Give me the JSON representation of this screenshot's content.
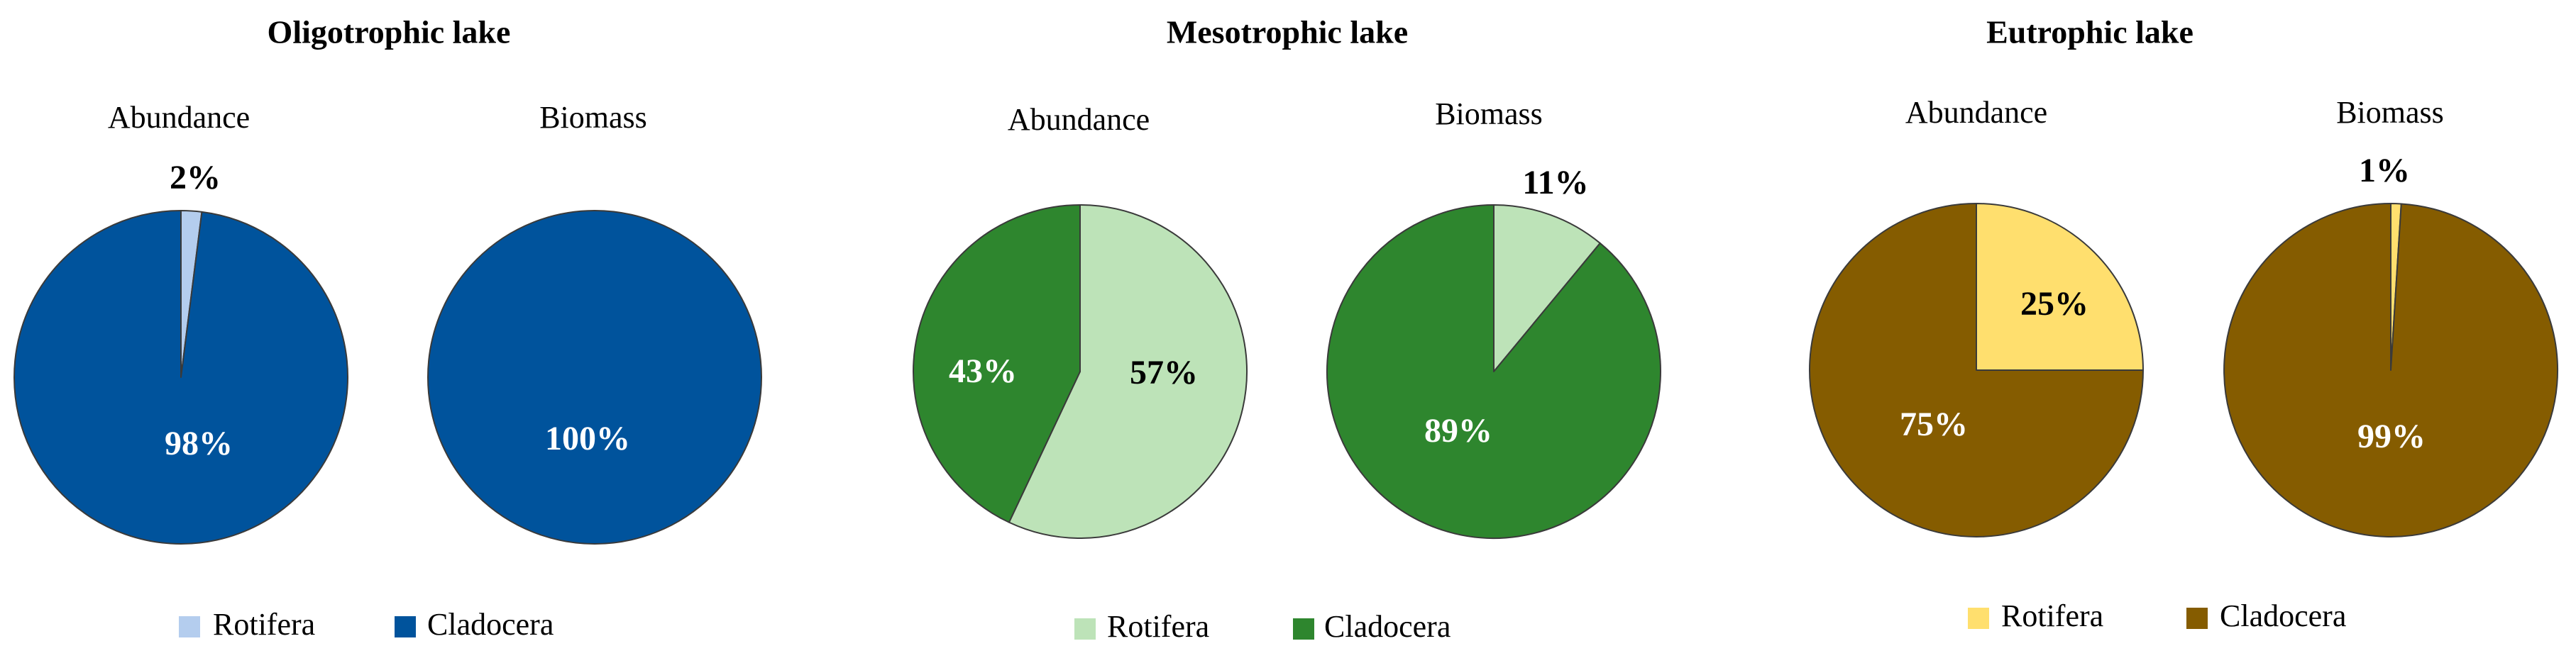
{
  "chart_data": [
    {
      "type": "pie",
      "title": "Oligotrophic lake",
      "categories": [
        "Rotifera",
        "Cladocera"
      ],
      "colors": [
        "#b4cdee",
        "#00539c"
      ],
      "legend_position": "bottom",
      "pies": [
        {
          "label": "Abundance",
          "values": [
            2,
            98
          ],
          "data_labels": [
            "2%",
            "98%"
          ]
        },
        {
          "label": "Biomass",
          "values": [
            0,
            100
          ],
          "data_labels": [
            "",
            "100%"
          ]
        }
      ]
    },
    {
      "type": "pie",
      "title": "Mesotrophic lake",
      "categories": [
        "Rotifera",
        "Cladocera"
      ],
      "colors": [
        "#bde3b8",
        "#2e862e"
      ],
      "legend_position": "bottom",
      "pies": [
        {
          "label": "Abundance",
          "values": [
            57,
            43
          ],
          "data_labels": [
            "57%",
            "43%"
          ]
        },
        {
          "label": "Biomass",
          "values": [
            11,
            89
          ],
          "data_labels": [
            "11%",
            "89%"
          ]
        }
      ]
    },
    {
      "type": "pie",
      "title": "Eutrophic lake",
      "categories": [
        "Rotifera",
        "Cladocera"
      ],
      "colors": [
        "#ffdf6e",
        "#855c00"
      ],
      "legend_position": "bottom",
      "pies": [
        {
          "label": "Abundance",
          "values": [
            25,
            75
          ],
          "data_labels": [
            "25%",
            "75%"
          ]
        },
        {
          "label": "Biomass",
          "values": [
            1,
            99
          ],
          "data_labels": [
            "1%",
            "99%"
          ]
        }
      ]
    }
  ]
}
